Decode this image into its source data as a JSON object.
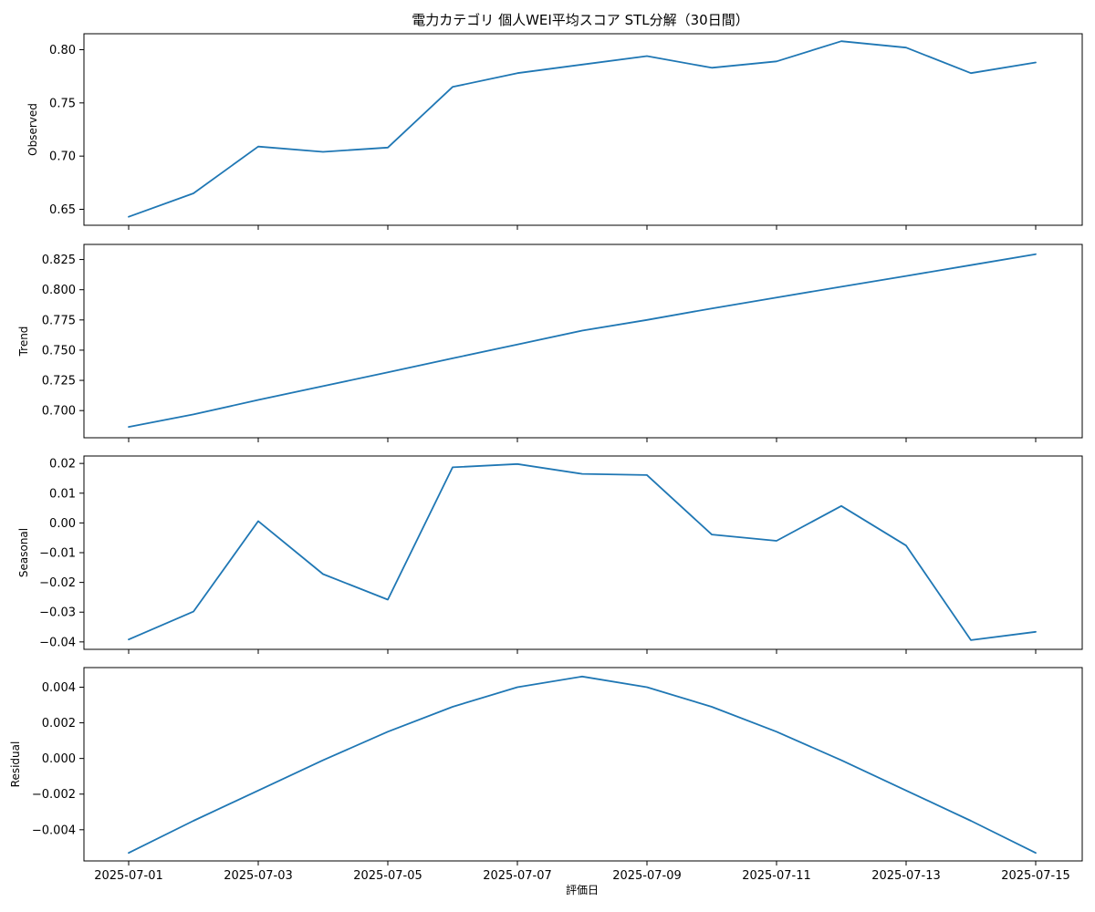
{
  "figure": {
    "title": "電力カテゴリ 個人WEI平均スコア STL分解（30日間）",
    "xlabel": "評価日",
    "line_color": "#1f77b4"
  },
  "chart_data": {
    "type": "line",
    "title": "電力カテゴリ 個人WEI平均スコア STL分解（30日間）",
    "xlabel": "評価日",
    "x": [
      "2025-07-01",
      "2025-07-02",
      "2025-07-03",
      "2025-07-04",
      "2025-07-05",
      "2025-07-06",
      "2025-07-07",
      "2025-07-08",
      "2025-07-09",
      "2025-07-10",
      "2025-07-11",
      "2025-07-12",
      "2025-07-13",
      "2025-07-14",
      "2025-07-15"
    ],
    "xtick_labels": [
      "2025-07-01",
      "2025-07-03",
      "2025-07-05",
      "2025-07-07",
      "2025-07-09",
      "2025-07-11",
      "2025-07-13",
      "2025-07-15"
    ],
    "grid": false,
    "panels": [
      {
        "ylabel": "Observed",
        "ylim": [
          0.635,
          0.815
        ],
        "yticks": [
          "0.65",
          "0.70",
          "0.75",
          "0.80"
        ],
        "values": [
          0.643,
          0.665,
          0.709,
          0.704,
          0.708,
          0.765,
          0.778,
          0.786,
          0.794,
          0.783,
          0.789,
          0.808,
          0.802,
          0.778,
          0.788
        ]
      },
      {
        "ylabel": "Trend",
        "ylim": [
          0.6775,
          0.8375
        ],
        "yticks": [
          "0.700",
          "0.725",
          "0.750",
          "0.775",
          "0.800",
          "0.825"
        ],
        "values": [
          0.6865,
          0.6968,
          0.7088,
          0.7202,
          0.7317,
          0.7432,
          0.7547,
          0.7662,
          0.775,
          0.7845,
          0.7936,
          0.8025,
          0.8114,
          0.8204,
          0.8294
        ]
      },
      {
        "ylabel": "Seasonal",
        "ylim": [
          -0.0425,
          0.0225
        ],
        "yticks": [
          "−0.04",
          "−0.03",
          "−0.02",
          "−0.01",
          "0.00",
          "0.01",
          "0.02"
        ],
        "values": [
          -0.0392,
          -0.0298,
          0.0006,
          -0.0172,
          -0.0258,
          0.0187,
          0.0198,
          0.0165,
          0.0161,
          -0.0039,
          -0.006,
          0.0057,
          -0.0076,
          -0.0394,
          -0.0366
        ]
      },
      {
        "ylabel": "Residual",
        "ylim": [
          -0.00575,
          0.0051
        ],
        "yticks": [
          "−0.004",
          "−0.002",
          "0.000",
          "0.002",
          "0.004"
        ],
        "values": [
          -0.0053,
          -0.0035,
          -0.0018,
          -0.0001,
          0.0015,
          0.0029,
          0.004,
          0.0046,
          0.004,
          0.0029,
          0.0015,
          -0.0001,
          -0.0018,
          -0.0035,
          -0.0053
        ]
      }
    ]
  }
}
